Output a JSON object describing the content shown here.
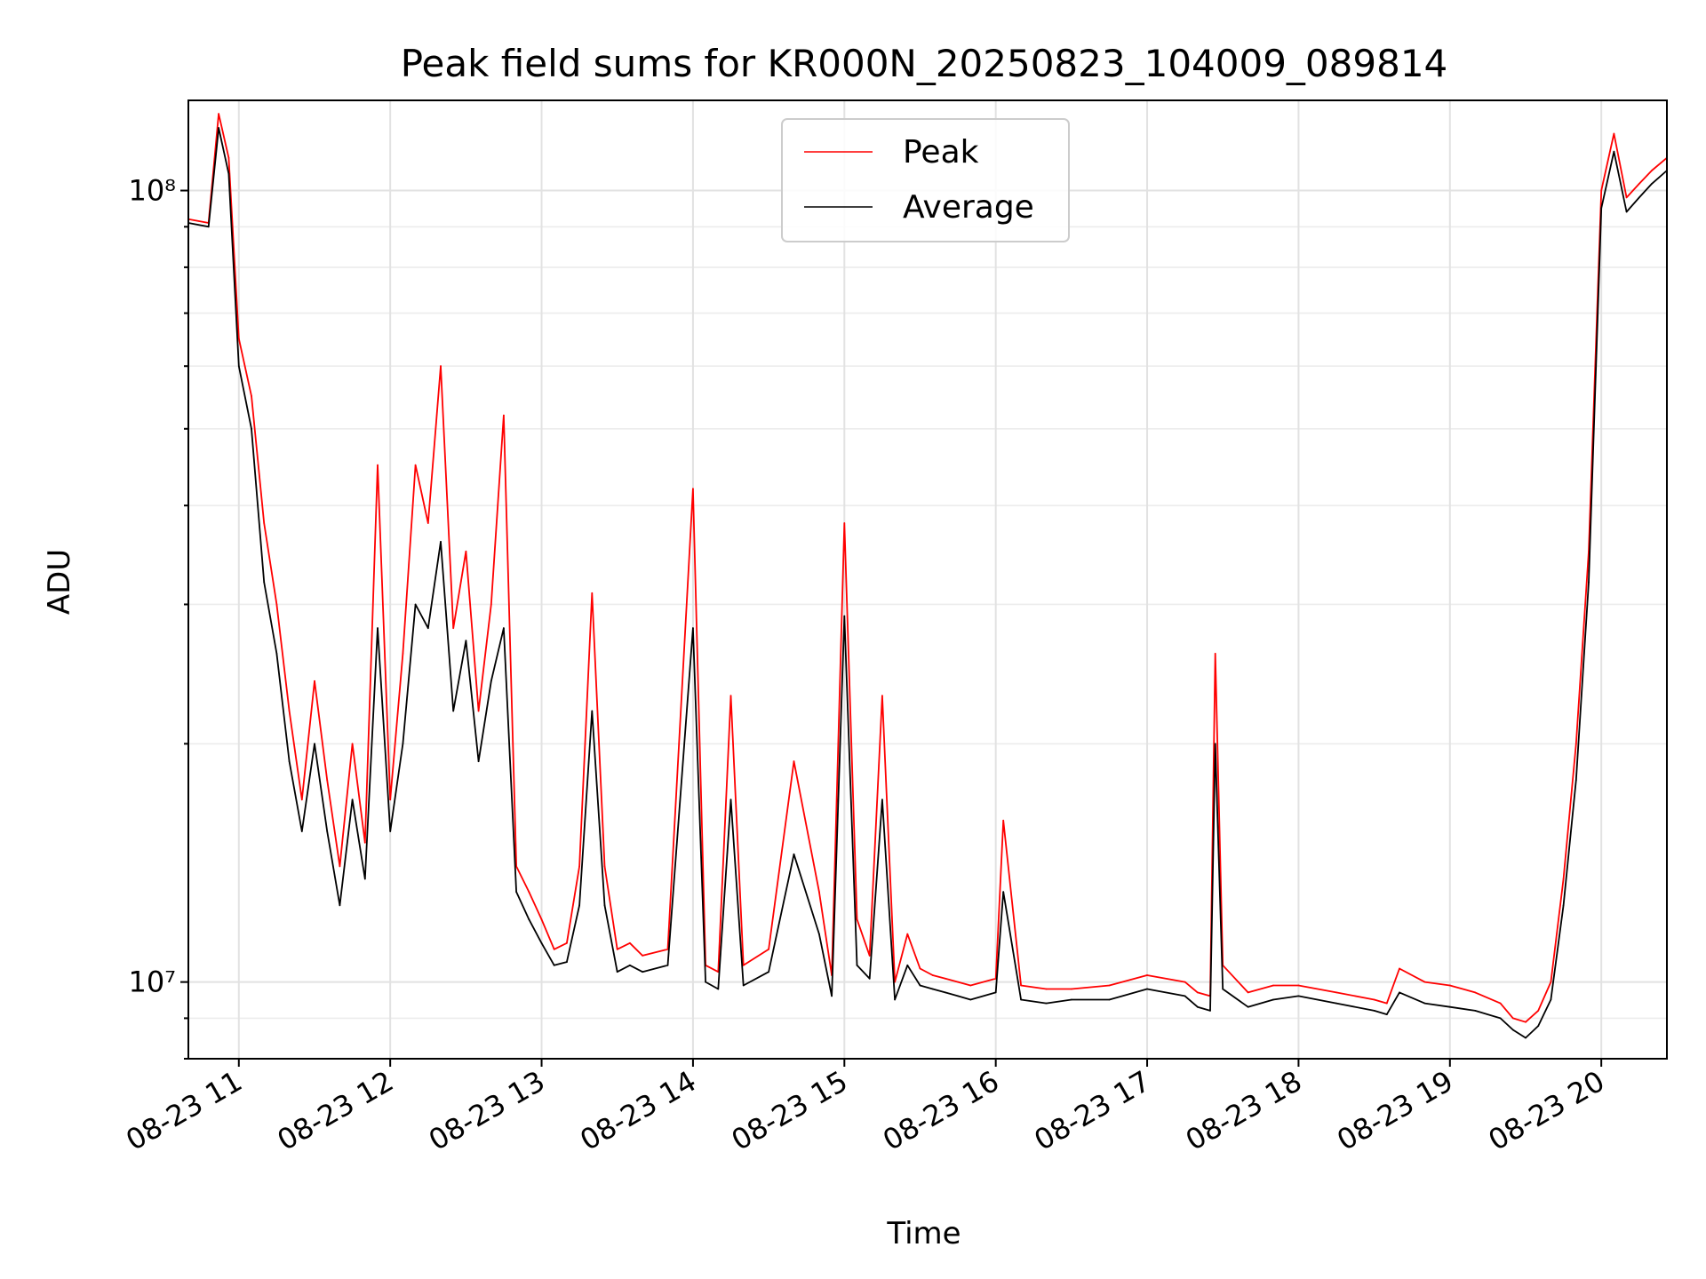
{
  "chart_data": {
    "type": "line",
    "title": "Peak field sums for KR000N_20250823_104009_089814",
    "xlabel": "Time",
    "ylabel": "ADU",
    "y_scale": "log",
    "ylim": [
      8000000,
      130000000
    ],
    "xlim": [
      "2025-08-23 10:40",
      "2025-08-23 20:26"
    ],
    "x_ticks": [
      "08-23 11",
      "08-23 12",
      "08-23 13",
      "08-23 14",
      "08-23 15",
      "08-23 16",
      "08-23 17",
      "08-23 18",
      "08-23 19",
      "08-23 20"
    ],
    "y_ticks": [
      "10⁷",
      "10⁸"
    ],
    "grid": true,
    "legend_position": "upper-center",
    "series": [
      {
        "name": "Peak",
        "color": "#ff0000",
        "x": [
          "2025-08-23 10:40",
          "2025-08-23 10:48",
          "2025-08-23 10:52",
          "2025-08-23 10:56",
          "2025-08-23 11:00",
          "2025-08-23 11:05",
          "2025-08-23 11:10",
          "2025-08-23 11:15",
          "2025-08-23 11:20",
          "2025-08-23 11:25",
          "2025-08-23 11:30",
          "2025-08-23 11:35",
          "2025-08-23 11:40",
          "2025-08-23 11:45",
          "2025-08-23 11:50",
          "2025-08-23 11:55",
          "2025-08-23 12:00",
          "2025-08-23 12:05",
          "2025-08-23 12:10",
          "2025-08-23 12:15",
          "2025-08-23 12:20",
          "2025-08-23 12:25",
          "2025-08-23 12:30",
          "2025-08-23 12:35",
          "2025-08-23 12:40",
          "2025-08-23 12:45",
          "2025-08-23 12:50",
          "2025-08-23 12:55",
          "2025-08-23 13:00",
          "2025-08-23 13:05",
          "2025-08-23 13:10",
          "2025-08-23 13:15",
          "2025-08-23 13:20",
          "2025-08-23 13:25",
          "2025-08-23 13:30",
          "2025-08-23 13:35",
          "2025-08-23 13:40",
          "2025-08-23 13:50",
          "2025-08-23 14:00",
          "2025-08-23 14:05",
          "2025-08-23 14:10",
          "2025-08-23 14:15",
          "2025-08-23 14:20",
          "2025-08-23 14:30",
          "2025-08-23 14:40",
          "2025-08-23 14:50",
          "2025-08-23 14:55",
          "2025-08-23 15:00",
          "2025-08-23 15:05",
          "2025-08-23 15:10",
          "2025-08-23 15:15",
          "2025-08-23 15:20",
          "2025-08-23 15:25",
          "2025-08-23 15:30",
          "2025-08-23 15:35",
          "2025-08-23 15:40",
          "2025-08-23 15:45",
          "2025-08-23 15:50",
          "2025-08-23 16:00",
          "2025-08-23 16:03",
          "2025-08-23 16:10",
          "2025-08-23 16:20",
          "2025-08-23 16:30",
          "2025-08-23 16:45",
          "2025-08-23 17:00",
          "2025-08-23 17:15",
          "2025-08-23 17:20",
          "2025-08-23 17:25",
          "2025-08-23 17:27",
          "2025-08-23 17:30",
          "2025-08-23 17:40",
          "2025-08-23 17:50",
          "2025-08-23 18:00",
          "2025-08-23 18:15",
          "2025-08-23 18:30",
          "2025-08-23 18:35",
          "2025-08-23 18:40",
          "2025-08-23 18:50",
          "2025-08-23 19:00",
          "2025-08-23 19:10",
          "2025-08-23 19:20",
          "2025-08-23 19:25",
          "2025-08-23 19:30",
          "2025-08-23 19:35",
          "2025-08-23 19:40",
          "2025-08-23 19:45",
          "2025-08-23 19:50",
          "2025-08-23 19:55",
          "2025-08-23 20:00",
          "2025-08-23 20:05",
          "2025-08-23 20:10",
          "2025-08-23 20:15",
          "2025-08-23 20:20",
          "2025-08-23 20:26"
        ],
        "values": [
          92000000,
          91000000,
          125000000,
          110000000,
          65000000,
          55000000,
          38000000,
          30000000,
          22000000,
          17000000,
          24000000,
          18000000,
          14000000,
          20000000,
          15000000,
          45000000,
          17000000,
          26000000,
          45000000,
          38000000,
          60000000,
          28000000,
          35000000,
          22000000,
          30000000,
          52000000,
          14000000,
          13000000,
          12000000,
          11000000,
          11200000,
          14000000,
          31000000,
          14000000,
          11000000,
          11200000,
          10800000,
          11000000,
          42000000,
          10500000,
          10300000,
          23000000,
          10500000,
          11000000,
          19000000,
          13000000,
          10200000,
          38000000,
          12000000,
          10800000,
          23000000,
          10000000,
          11500000,
          10400000,
          10200000,
          10100000,
          10000000,
          9900000,
          10100000,
          16000000,
          9900000,
          9800000,
          9800000,
          9900000,
          10200000,
          10000000,
          9700000,
          9600000,
          26000000,
          10500000,
          9700000,
          9900000,
          9900000,
          9700000,
          9500000,
          9400000,
          10400000,
          10000000,
          9900000,
          9700000,
          9400000,
          9000000,
          8900000,
          9200000,
          10000000,
          13500000,
          20000000,
          35000000,
          100000000,
          118000000,
          98000000,
          102000000,
          106000000,
          110000000
        ]
      },
      {
        "name": "Average",
        "color": "#000000",
        "x": [
          "2025-08-23 10:40",
          "2025-08-23 10:48",
          "2025-08-23 10:52",
          "2025-08-23 10:56",
          "2025-08-23 11:00",
          "2025-08-23 11:05",
          "2025-08-23 11:10",
          "2025-08-23 11:15",
          "2025-08-23 11:20",
          "2025-08-23 11:25",
          "2025-08-23 11:30",
          "2025-08-23 11:35",
          "2025-08-23 11:40",
          "2025-08-23 11:45",
          "2025-08-23 11:50",
          "2025-08-23 11:55",
          "2025-08-23 12:00",
          "2025-08-23 12:05",
          "2025-08-23 12:10",
          "2025-08-23 12:15",
          "2025-08-23 12:20",
          "2025-08-23 12:25",
          "2025-08-23 12:30",
          "2025-08-23 12:35",
          "2025-08-23 12:40",
          "2025-08-23 12:45",
          "2025-08-23 12:50",
          "2025-08-23 12:55",
          "2025-08-23 13:00",
          "2025-08-23 13:05",
          "2025-08-23 13:10",
          "2025-08-23 13:15",
          "2025-08-23 13:20",
          "2025-08-23 13:25",
          "2025-08-23 13:30",
          "2025-08-23 13:35",
          "2025-08-23 13:40",
          "2025-08-23 13:50",
          "2025-08-23 14:00",
          "2025-08-23 14:05",
          "2025-08-23 14:10",
          "2025-08-23 14:15",
          "2025-08-23 14:20",
          "2025-08-23 14:30",
          "2025-08-23 14:40",
          "2025-08-23 14:50",
          "2025-08-23 14:55",
          "2025-08-23 15:00",
          "2025-08-23 15:05",
          "2025-08-23 15:10",
          "2025-08-23 15:15",
          "2025-08-23 15:20",
          "2025-08-23 15:25",
          "2025-08-23 15:30",
          "2025-08-23 15:35",
          "2025-08-23 15:40",
          "2025-08-23 15:45",
          "2025-08-23 15:50",
          "2025-08-23 16:00",
          "2025-08-23 16:03",
          "2025-08-23 16:10",
          "2025-08-23 16:20",
          "2025-08-23 16:30",
          "2025-08-23 16:45",
          "2025-08-23 17:00",
          "2025-08-23 17:15",
          "2025-08-23 17:20",
          "2025-08-23 17:25",
          "2025-08-23 17:27",
          "2025-08-23 17:30",
          "2025-08-23 17:40",
          "2025-08-23 17:50",
          "2025-08-23 18:00",
          "2025-08-23 18:15",
          "2025-08-23 18:30",
          "2025-08-23 18:35",
          "2025-08-23 18:40",
          "2025-08-23 18:50",
          "2025-08-23 19:00",
          "2025-08-23 19:10",
          "2025-08-23 19:20",
          "2025-08-23 19:25",
          "2025-08-23 19:30",
          "2025-08-23 19:35",
          "2025-08-23 19:40",
          "2025-08-23 19:45",
          "2025-08-23 19:50",
          "2025-08-23 19:55",
          "2025-08-23 20:00",
          "2025-08-23 20:05",
          "2025-08-23 20:10",
          "2025-08-23 20:15",
          "2025-08-23 20:20",
          "2025-08-23 20:26"
        ],
        "values": [
          91000000,
          90000000,
          120000000,
          105000000,
          60000000,
          50000000,
          32000000,
          26000000,
          19000000,
          15500000,
          20000000,
          15500000,
          12500000,
          17000000,
          13500000,
          28000000,
          15500000,
          20000000,
          30000000,
          28000000,
          36000000,
          22000000,
          27000000,
          19000000,
          24000000,
          28000000,
          13000000,
          12000000,
          11200000,
          10500000,
          10600000,
          12500000,
          22000000,
          12500000,
          10300000,
          10500000,
          10300000,
          10500000,
          28000000,
          10000000,
          9800000,
          17000000,
          9900000,
          10300000,
          14500000,
          11500000,
          9600000,
          29000000,
          10500000,
          10100000,
          17000000,
          9500000,
          10500000,
          9900000,
          9800000,
          9700000,
          9600000,
          9500000,
          9700000,
          13000000,
          9500000,
          9400000,
          9500000,
          9500000,
          9800000,
          9600000,
          9300000,
          9200000,
          20000000,
          9800000,
          9300000,
          9500000,
          9600000,
          9400000,
          9200000,
          9100000,
          9700000,
          9400000,
          9300000,
          9200000,
          9000000,
          8700000,
          8500000,
          8800000,
          9500000,
          12500000,
          18000000,
          32000000,
          95000000,
          112000000,
          94000000,
          98000000,
          102000000,
          106000000
        ]
      }
    ]
  }
}
